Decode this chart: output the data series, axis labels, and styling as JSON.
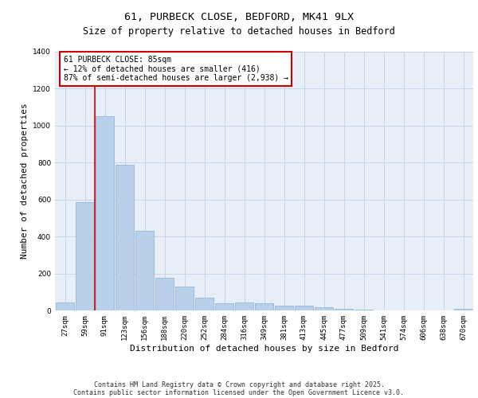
{
  "title_line1": "61, PURBECK CLOSE, BEDFORD, MK41 9LX",
  "title_line2": "Size of property relative to detached houses in Bedford",
  "xlabel": "Distribution of detached houses by size in Bedford",
  "ylabel": "Number of detached properties",
  "categories": [
    "27sqm",
    "59sqm",
    "91sqm",
    "123sqm",
    "156sqm",
    "188sqm",
    "220sqm",
    "252sqm",
    "284sqm",
    "316sqm",
    "349sqm",
    "381sqm",
    "413sqm",
    "445sqm",
    "477sqm",
    "509sqm",
    "541sqm",
    "574sqm",
    "606sqm",
    "638sqm",
    "670sqm"
  ],
  "values": [
    45,
    585,
    1050,
    790,
    430,
    178,
    128,
    68,
    38,
    42,
    38,
    28,
    25,
    18,
    10,
    6,
    0,
    0,
    0,
    0,
    10
  ],
  "bar_color": "#b8d0ea",
  "bar_edge_color": "#8ab0d0",
  "grid_color": "#c8d4e8",
  "background_color": "#e8eef8",
  "vline_color": "#cc0000",
  "vline_pos": 1.5,
  "annotation_text": "61 PURBECK CLOSE: 85sqm\n← 12% of detached houses are smaller (416)\n87% of semi-detached houses are larger (2,938) →",
  "annotation_box_color": "#cc0000",
  "ylim": [
    0,
    1400
  ],
  "yticks": [
    0,
    200,
    400,
    600,
    800,
    1000,
    1200,
    1400
  ],
  "footnote_line1": "Contains HM Land Registry data © Crown copyright and database right 2025.",
  "footnote_line2": "Contains public sector information licensed under the Open Government Licence v3.0.",
  "title_fontsize": 9.5,
  "subtitle_fontsize": 8.5,
  "axis_label_fontsize": 8,
  "tick_fontsize": 6.5,
  "annotation_fontsize": 7,
  "footnote_fontsize": 6
}
